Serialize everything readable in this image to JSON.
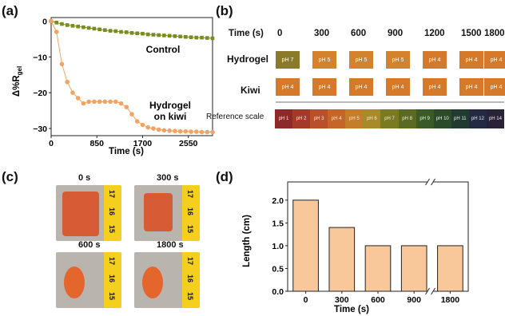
{
  "panels": {
    "a": "(a)",
    "b": "(b)",
    "c": "(c)",
    "d": "(d)"
  },
  "panel_a": {
    "ylabel": "Δ%R",
    "ylabel_sub": "gel",
    "xlabel": "Time (s)",
    "annotations": {
      "control": "Control",
      "hydrogel_line1": "Hydrogel",
      "hydrogel_line2": "on kiwi"
    }
  },
  "panel_b": {
    "time_header": "Time (s)",
    "times": [
      "0",
      "300",
      "600",
      "900",
      "1200",
      "1500",
      "1800"
    ],
    "rows": [
      {
        "label": "Hydrogel",
        "values": [
          "pH 7",
          "pH 5",
          "pH 5",
          "pH 5",
          "pH 4",
          "pH 4",
          "pH 4"
        ]
      },
      {
        "label": "Kiwi",
        "values": [
          "pH 4",
          "pH 4",
          "pH 4",
          "pH 4",
          "pH 4",
          "pH 4",
          "pH 4"
        ]
      }
    ],
    "reference_label": "Reference scale",
    "reference": [
      "pH 1",
      "pH 2",
      "pH 3",
      "pH 4",
      "pH 5",
      "pH 6",
      "pH 7",
      "pH 8",
      "pH 9",
      "pH 10",
      "pH 11",
      "pH 12",
      "pH 14"
    ]
  },
  "panel_c": {
    "photos": [
      {
        "time": "0 s",
        "ruler": [
          "17",
          "16",
          "15"
        ]
      },
      {
        "time": "300 s",
        "ruler": [
          "17",
          "16",
          "15"
        ]
      },
      {
        "time": "600 s",
        "ruler": [
          "17",
          "16",
          "15"
        ]
      },
      {
        "time": "1800 s",
        "ruler": [
          "17",
          "16",
          "15"
        ]
      }
    ]
  },
  "colors": {
    "control": "#7a8c1e",
    "hydrogel": "#f4a460",
    "bar_fill": "#f8c79a"
  },
  "chart_data": [
    {
      "type": "line",
      "xlabel": "Time (s)",
      "ylabel": "Δ%Rgel",
      "xlim": [
        0,
        3000
      ],
      "ylim": [
        -32,
        1
      ],
      "xticks": [
        0,
        850,
        1700,
        2550
      ],
      "yticks": [
        0,
        -10,
        -20,
        -30
      ],
      "series": [
        {
          "name": "Control",
          "x": [
            0,
            100,
            200,
            300,
            400,
            500,
            600,
            700,
            800,
            900,
            1000,
            1100,
            1200,
            1300,
            1400,
            1500,
            1600,
            1700,
            1800,
            1900,
            2000,
            2100,
            2200,
            2300,
            2400,
            2500,
            2600,
            2700,
            2800,
            2900,
            3000
          ],
          "y": [
            0,
            -0.4,
            -0.8,
            -1.1,
            -1.3,
            -1.5,
            -1.7,
            -1.9,
            -2.1,
            -2.3,
            -2.5,
            -2.7,
            -2.8,
            -3.0,
            -3.1,
            -3.3,
            -3.4,
            -3.5,
            -3.7,
            -3.8,
            -3.9,
            -4.0,
            -4.1,
            -4.2,
            -4.3,
            -4.4,
            -4.5,
            -4.6,
            -4.6,
            -4.7,
            -4.8
          ]
        },
        {
          "name": "Hydrogel on kiwi",
          "x": [
            0,
            100,
            200,
            300,
            400,
            500,
            600,
            700,
            800,
            900,
            1000,
            1100,
            1200,
            1300,
            1400,
            1500,
            1600,
            1700,
            1800,
            1900,
            2000,
            2100,
            2200,
            2300,
            2400,
            2500,
            2600,
            2700,
            2800,
            2900,
            3000
          ],
          "y": [
            0,
            -3,
            -12,
            -17,
            -20,
            -21.5,
            -23,
            -22.5,
            -22.5,
            -22.5,
            -22.5,
            -22.5,
            -22.5,
            -23,
            -24,
            -26,
            -28,
            -29,
            -29.7,
            -30,
            -30.3,
            -30.5,
            -30.6,
            -30.7,
            -30.8,
            -30.8,
            -30.9,
            -30.9,
            -31,
            -31,
            -31
          ]
        }
      ]
    },
    {
      "type": "bar",
      "xlabel": "Time (s)",
      "ylabel": "Length (cm)",
      "categories": [
        "0",
        "300",
        "600",
        "900",
        "1800"
      ],
      "values": [
        2.0,
        1.4,
        1.0,
        1.0,
        1.0
      ],
      "ylim": [
        0,
        2.4
      ],
      "yticks": [
        "0.0",
        "0.5",
        "1.0",
        "1.5",
        "2.0"
      ]
    }
  ]
}
